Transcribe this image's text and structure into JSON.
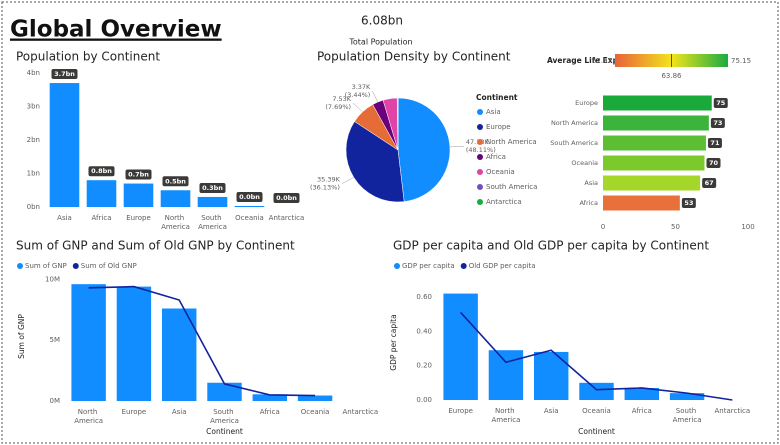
{
  "header": {
    "title": "Global Overview",
    "kpi_value": "6.08bn",
    "kpi_label": "Total Population"
  },
  "chart_data": [
    {
      "type": "bar",
      "title": "Population by Continent",
      "categories": [
        "Asia",
        "Africa",
        "Europe",
        "North America",
        "South America",
        "Oceania",
        "Antarctica"
      ],
      "values": [
        3.7,
        0.8,
        0.7,
        0.5,
        0.3,
        0.03,
        0
      ],
      "value_labels": [
        "3.7bn",
        "0.8bn",
        "0.7bn",
        "0.5bn",
        "0.3bn",
        "0.0bn",
        "0.0bn"
      ],
      "color": "#118dff",
      "ylim": [
        0,
        4
      ],
      "yticks": [
        {
          "value": 0,
          "label": "0bn"
        },
        {
          "value": 1,
          "label": "1bn"
        },
        {
          "value": 2,
          "label": "2bn"
        },
        {
          "value": 3,
          "label": "3bn"
        },
        {
          "value": 4,
          "label": "4bn"
        }
      ]
    },
    {
      "type": "pie",
      "title": "Population Density by Continent",
      "legend_title": "Continent",
      "categories": [
        "Asia",
        "Europe",
        "North America",
        "Africa",
        "Oceania",
        "South America",
        "Antarctica"
      ],
      "values": [
        47.13,
        35.39,
        7.53,
        3.37,
        4.29,
        0.25,
        0
      ],
      "value_labels": [
        "47.13K",
        "35.39K",
        "7.53K",
        "3.37K",
        null,
        null,
        null
      ],
      "percent_labels": [
        "(48.11%)",
        "(36.13%)",
        "(7.69%)",
        "(3.44%)",
        null,
        null,
        null
      ],
      "colors": [
        "#118dff",
        "#12239e",
        "#e66c37",
        "#6b007b",
        "#e044a7",
        "#744ec2",
        "#1aab40"
      ]
    },
    {
      "type": "hbar",
      "title": "Average Life Expectancy",
      "categories": [
        "Europe",
        "North America",
        "South America",
        "Oceania",
        "Asia",
        "Africa"
      ],
      "values": [
        75,
        73,
        71,
        70,
        67,
        53
      ],
      "colors": [
        "#1aaa3a",
        "#3cb43c",
        "#5cbf33",
        "#7cc92b",
        "#a5d62a",
        "#e8703a"
      ],
      "xlim": [
        0,
        100
      ],
      "xticks": [
        0,
        50,
        100
      ],
      "color_scale": {
        "min": 52.57,
        "mid": 63.86,
        "max": 75.15,
        "colors": [
          "#e8613a",
          "#f2e41c",
          "#1aab40"
        ]
      }
    },
    {
      "type": "combo",
      "title": "Sum of GNP and Sum of Old GNP by Continent",
      "categories": [
        "North America",
        "Europe",
        "Asia",
        "South America",
        "Africa",
        "Oceania",
        "Antarctica"
      ],
      "series": [
        {
          "name": "Sum of GNP",
          "color": "#118dff",
          "values": [
            9.6,
            9.4,
            7.6,
            1.5,
            0.55,
            0.45,
            0
          ]
        },
        {
          "name": "Sum of Old GNP",
          "color": "#12239e",
          "values": [
            9.3,
            9.4,
            8.3,
            1.4,
            0.5,
            0.45,
            null
          ]
        }
      ],
      "ylim": [
        0,
        10.6
      ],
      "yticks": [
        {
          "value": 0,
          "label": "0M"
        },
        {
          "value": 5,
          "label": "5M"
        },
        {
          "value": 10,
          "label": "10M"
        }
      ],
      "y_label": "Sum of GNP",
      "x_label": "Continent"
    },
    {
      "type": "combo",
      "title": "GDP per capita and Old GDP per capita by Continent",
      "categories": [
        "Europe",
        "North America",
        "Asia",
        "Oceania",
        "Africa",
        "South America",
        "Antarctica"
      ],
      "series": [
        {
          "name": "GDP per capita",
          "color": "#118dff",
          "values": [
            0.62,
            0.29,
            0.28,
            0.1,
            0.07,
            0.04,
            0
          ]
        },
        {
          "name": "Old GDP per capita",
          "color": "#12239e",
          "values": [
            0.51,
            0.22,
            0.29,
            0.06,
            0.07,
            0.04,
            0
          ]
        }
      ],
      "ylim": [
        0,
        0.67
      ],
      "yticks": [
        {
          "value": 0,
          "label": "0.00"
        },
        {
          "value": 0.2,
          "label": "0.20"
        },
        {
          "value": 0.4,
          "label": "0.40"
        },
        {
          "value": 0.6,
          "label": "0.60"
        }
      ],
      "y_label": "GDP per capita",
      "x_label": "Continent"
    }
  ]
}
